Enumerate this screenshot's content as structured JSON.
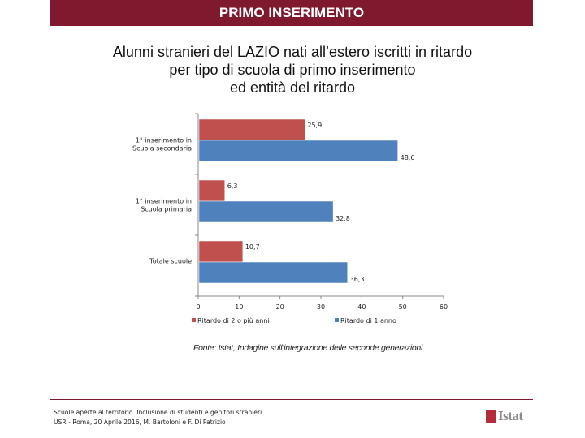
{
  "header": {
    "title": "PRIMO INSERIMENTO"
  },
  "title_lines": [
    "Alunni stranieri del LAZIO nati all’estero iscritti in ritardo",
    "per tipo di scuola di primo inserimento",
    "ed entità del ritardo"
  ],
  "chart_data": {
    "type": "bar",
    "orientation": "horizontal",
    "title": "Alunni stranieri del LAZIO nati all’estero iscritti in ritardo per tipo di scuola di primo inserimento ed entità del ritardo",
    "categories": [
      [
        "1° inserimento in",
        "Scuola secondaria"
      ],
      [
        "1° inserimento in",
        "Scuola primaria"
      ],
      [
        "Totale scuole"
      ]
    ],
    "series": [
      {
        "name": "Ritardo di 2 o più anni",
        "values": [
          25.9,
          6.3,
          10.7
        ],
        "labels": [
          "25,9",
          "6,3",
          "10,7"
        ],
        "color": "#c0504d"
      },
      {
        "name": "Ritardo di 1 anno",
        "values": [
          48.6,
          32.8,
          36.3
        ],
        "labels": [
          "48,6",
          "32,8",
          "36,3"
        ],
        "color": "#4f81bd"
      }
    ],
    "xlim": [
      0,
      60
    ],
    "xticks": [
      0,
      10,
      20,
      30,
      40,
      50,
      60
    ],
    "xlabel": "",
    "ylabel": "",
    "grid": false,
    "legend": "bottom"
  },
  "source": "Fonte: Istat, Indagine sull’integrazione delle seconde generazioni",
  "footer": {
    "line1": "Scuole aperte al territorio. Inclusione di studenti e genitori stranieri",
    "line2": "USR - Roma, 20 Aprile 2016, M. Bartoloni e F. Di Patrizio"
  },
  "logo": {
    "text": "Istat",
    "color": "#b52b3a"
  }
}
